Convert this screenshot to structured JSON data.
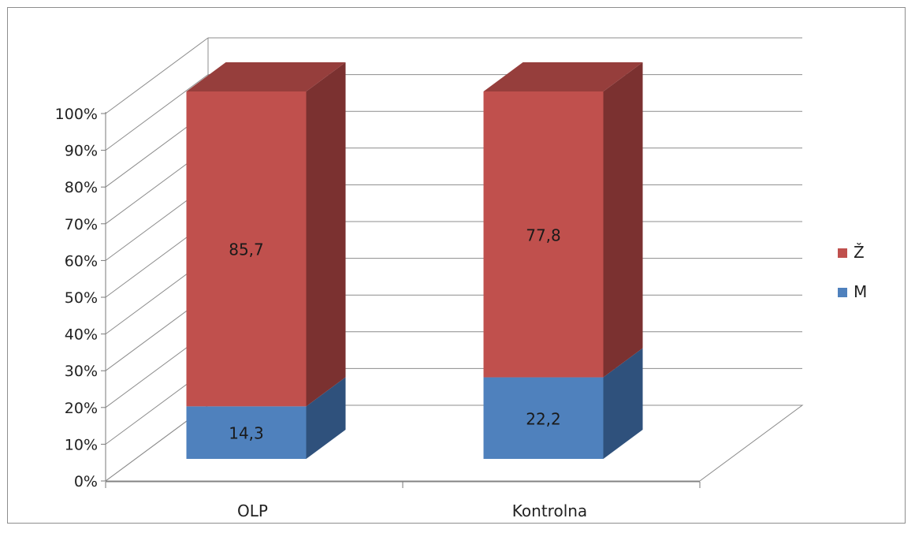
{
  "chart_data": {
    "type": "bar",
    "stacked": true,
    "three_d": true,
    "categories": [
      "OLP",
      "Kontrolna"
    ],
    "series": [
      {
        "name": "M",
        "values": [
          14.3,
          22.2
        ],
        "labels": [
          "14,3",
          "22,2"
        ],
        "color": "#4f81bd",
        "side_color": "#2f517c"
      },
      {
        "name": "Ž",
        "values": [
          85.7,
          77.8
        ],
        "labels": [
          "85,7",
          "77,8"
        ],
        "color": "#c0504d",
        "side_color": "#7b3130"
      }
    ],
    "y_ticks": [
      "0%",
      "10%",
      "20%",
      "30%",
      "40%",
      "50%",
      "60%",
      "70%",
      "80%",
      "90%",
      "100%"
    ],
    "ylim": [
      0,
      100
    ],
    "grid": true,
    "legend": {
      "position": "right",
      "order": [
        "Ž",
        "M"
      ]
    },
    "title": "",
    "xlabel": "",
    "ylabel": ""
  }
}
